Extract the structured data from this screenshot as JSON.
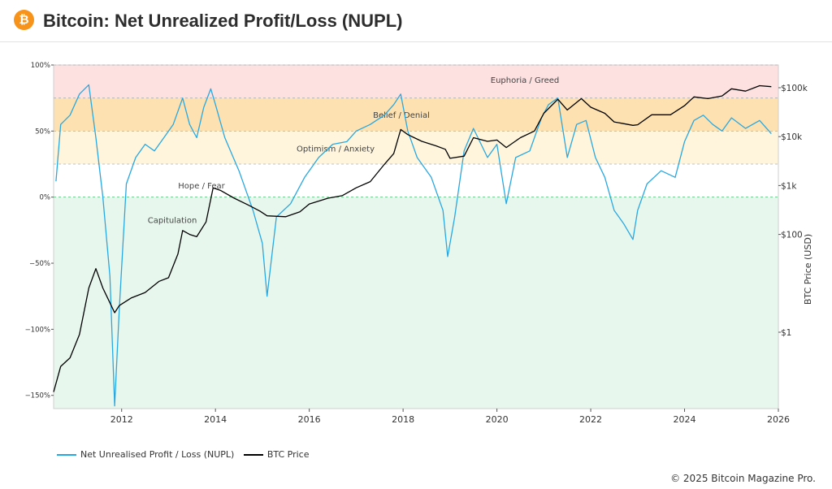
{
  "header": {
    "title": "Bitcoin: Net Unrealized Profit/Loss (NUPL)",
    "logo_glyph": "₿",
    "logo_color": "#f7931a"
  },
  "footer": {
    "credit": "© 2025 Bitcoin Magazine Pro."
  },
  "chart_data": {
    "type": "line",
    "title": "Bitcoin: Net Unrealized Profit/Loss (NUPL)",
    "xlabel": "",
    "x_ticks": [
      "2012",
      "2014",
      "2016",
      "2018",
      "2020",
      "2022",
      "2024",
      "2026"
    ],
    "xlim": [
      2010.55,
      2026.0
    ],
    "y_left": {
      "label": "",
      "ticks": [
        "100%",
        "50%",
        "0%",
        "−50%",
        "−100%",
        "−150%"
      ],
      "tick_values": [
        1.0,
        0.5,
        0.0,
        -0.5,
        -1.0,
        -1.5
      ],
      "ylim": [
        -1.6,
        1.0
      ],
      "scale": "linear"
    },
    "y_right": {
      "label": "BTC Price (USD)",
      "ticks": [
        "$100k",
        "$10k",
        "$1k",
        "$100",
        "$1"
      ],
      "tick_values": [
        100000,
        10000,
        1000,
        100,
        1
      ],
      "scale": "log"
    },
    "zones": [
      {
        "label": "Euphoria / Greed",
        "from": 0.75,
        "to": 1.0,
        "color": "#fde0e0"
      },
      {
        "label": "Belief / Denial",
        "from": 0.5,
        "to": 0.75,
        "color": "#fde1b0"
      },
      {
        "label": "Optimism / Anxiety",
        "from": 0.25,
        "to": 0.5,
        "color": "#fef5dc"
      },
      {
        "label": "Hope / Fear",
        "from": 0.0,
        "to": 0.25,
        "color": "#ffffff"
      },
      {
        "label": "Capitulation",
        "from": -1.6,
        "to": 0.0,
        "color": "#e8f7ee"
      }
    ],
    "legend_position": "bottom-left",
    "series": [
      {
        "name": "Net Unrealised Profit / Loss (NUPL)",
        "axis": "left",
        "color": "#29a8e0",
        "x": [
          2010.6,
          2010.7,
          2010.9,
          2011.1,
          2011.3,
          2011.45,
          2011.6,
          2011.75,
          2011.85,
          2011.95,
          2012.1,
          2012.3,
          2012.5,
          2012.7,
          2012.9,
          2013.1,
          2013.3,
          2013.45,
          2013.6,
          2013.75,
          2013.9,
          2014.0,
          2014.2,
          2014.5,
          2014.8,
          2015.0,
          2015.1,
          2015.3,
          2015.6,
          2015.9,
          2016.2,
          2016.5,
          2016.8,
          2017.0,
          2017.3,
          2017.6,
          2017.8,
          2017.95,
          2018.1,
          2018.3,
          2018.6,
          2018.85,
          2018.95,
          2019.1,
          2019.3,
          2019.5,
          2019.8,
          2020.0,
          2020.2,
          2020.4,
          2020.7,
          2020.95,
          2021.1,
          2021.3,
          2021.5,
          2021.7,
          2021.9,
          2022.1,
          2022.3,
          2022.5,
          2022.7,
          2022.9,
          2023.0,
          2023.2,
          2023.5,
          2023.8,
          2024.0,
          2024.2,
          2024.4,
          2024.6,
          2024.8,
          2025.0,
          2025.3,
          2025.6,
          2025.85
        ],
        "values": [
          0.12,
          0.55,
          0.62,
          0.78,
          0.85,
          0.45,
          0.0,
          -0.6,
          -1.58,
          -0.85,
          0.1,
          0.3,
          0.4,
          0.35,
          0.45,
          0.55,
          0.75,
          0.55,
          0.45,
          0.68,
          0.82,
          0.7,
          0.45,
          0.2,
          -0.1,
          -0.35,
          -0.75,
          -0.15,
          -0.05,
          0.15,
          0.3,
          0.4,
          0.42,
          0.5,
          0.55,
          0.62,
          0.7,
          0.78,
          0.5,
          0.3,
          0.15,
          -0.1,
          -0.45,
          -0.15,
          0.35,
          0.52,
          0.3,
          0.4,
          -0.05,
          0.3,
          0.35,
          0.6,
          0.7,
          0.75,
          0.3,
          0.55,
          0.58,
          0.3,
          0.15,
          -0.1,
          -0.2,
          -0.32,
          -0.1,
          0.1,
          0.2,
          0.15,
          0.42,
          0.58,
          0.62,
          0.55,
          0.5,
          0.6,
          0.52,
          0.58,
          0.48
        ]
      },
      {
        "name": "BTC Price",
        "axis": "right",
        "color": "#000000",
        "x": [
          2010.55,
          2010.7,
          2010.9,
          2011.1,
          2011.3,
          2011.45,
          2011.6,
          2011.75,
          2011.85,
          2011.95,
          2012.2,
          2012.5,
          2012.8,
          2013.0,
          2013.2,
          2013.3,
          2013.45,
          2013.6,
          2013.8,
          2013.95,
          2014.1,
          2014.4,
          2014.7,
          2014.95,
          2015.1,
          2015.5,
          2015.8,
          2016.0,
          2016.4,
          2016.7,
          2017.0,
          2017.3,
          2017.6,
          2017.8,
          2017.95,
          2018.1,
          2018.4,
          2018.7,
          2018.9,
          2019.0,
          2019.3,
          2019.5,
          2019.8,
          2020.0,
          2020.2,
          2020.5,
          2020.8,
          2021.0,
          2021.3,
          2021.5,
          2021.8,
          2022.0,
          2022.3,
          2022.5,
          2022.9,
          2023.0,
          2023.3,
          2023.7,
          2024.0,
          2024.2,
          2024.5,
          2024.8,
          2025.0,
          2025.3,
          2025.6,
          2025.85
        ],
        "values": [
          0.06,
          0.2,
          0.3,
          0.9,
          8,
          20,
          8,
          4,
          2.5,
          3.5,
          5,
          6.5,
          11,
          13,
          40,
          120,
          100,
          90,
          180,
          900,
          800,
          550,
          400,
          300,
          240,
          230,
          290,
          420,
          550,
          620,
          900,
          1200,
          2700,
          4500,
          14000,
          11000,
          8000,
          6500,
          5500,
          3600,
          4000,
          9500,
          8000,
          8500,
          6000,
          9500,
          13000,
          30000,
          58000,
          35000,
          60000,
          40000,
          30000,
          20000,
          17000,
          17500,
          28000,
          28000,
          43000,
          65000,
          60000,
          68000,
          95000,
          85000,
          110000,
          105000
        ]
      }
    ]
  }
}
